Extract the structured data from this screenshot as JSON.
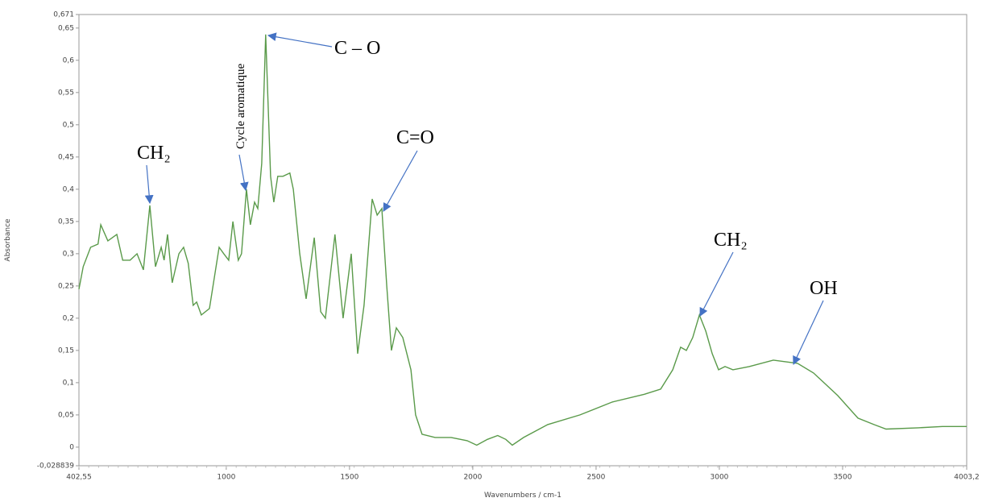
{
  "chart_data": {
    "type": "line",
    "x_label": "Wavenumbers / cm-1",
    "y_label": "Absorbance",
    "xlim": [
      402.55,
      4003.2
    ],
    "ylim": [
      -0.028839,
      0.671
    ],
    "xticks": [
      {
        "value": 402.55,
        "label": "402,55"
      },
      1000,
      1500,
      2000,
      2500,
      3000,
      3500,
      {
        "value": 4003.2,
        "label": "4003,2"
      }
    ],
    "yticks": [
      {
        "value": -0.028839,
        "label": "-0,028839"
      },
      0,
      {
        "value": 0.05,
        "label": "0,05"
      },
      {
        "value": 0.1,
        "label": "0,1"
      },
      {
        "value": 0.15,
        "label": "0,15"
      },
      {
        "value": 0.2,
        "label": "0,2"
      },
      {
        "value": 0.25,
        "label": "0,25"
      },
      {
        "value": 0.3,
        "label": "0,3"
      },
      {
        "value": 0.35,
        "label": "0,35"
      },
      {
        "value": 0.4,
        "label": "0,4"
      },
      {
        "value": 0.45,
        "label": "0,45"
      },
      {
        "value": 0.5,
        "label": "0,5"
      },
      {
        "value": 0.55,
        "label": "0,55"
      },
      {
        "value": 0.6,
        "label": "0,6"
      },
      {
        "value": 0.65,
        "label": "0,65"
      },
      {
        "value": 0.671,
        "label": "0,671"
      }
    ],
    "x": [
      402.55,
      420,
      450,
      480,
      491,
      520,
      556,
      580,
      610,
      638,
      664,
      690,
      713,
      736,
      748,
      762,
      781,
      808,
      827,
      846,
      866,
      880,
      899,
      932,
      971,
      990,
      1010,
      1027,
      1049,
      1062,
      1082,
      1098,
      1115,
      1128,
      1144,
      1160,
      1180,
      1193,
      1209,
      1230,
      1258,
      1272,
      1298,
      1324,
      1357,
      1383,
      1402,
      1441,
      1474,
      1507,
      1533,
      1559,
      1592,
      1612,
      1631,
      1651,
      1670,
      1690,
      1716,
      1749,
      1768,
      1794,
      1847,
      1912,
      1977,
      2016,
      2059,
      2101,
      2134,
      2160,
      2206,
      2304,
      2435,
      2566,
      2696,
      2762,
      2811,
      2843,
      2866,
      2892,
      2919,
      2945,
      2971,
      2997,
      3023,
      3055,
      3121,
      3219,
      3317,
      3382,
      3480,
      3562,
      3627,
      3676,
      3807,
      3905,
      4003.2
    ],
    "series": [
      {
        "name": "Absorbance",
        "color": "#5a9a4a",
        "values": [
          0.245,
          0.28,
          0.31,
          0.315,
          0.345,
          0.32,
          0.33,
          0.29,
          0.29,
          0.3,
          0.275,
          0.375,
          0.28,
          0.31,
          0.29,
          0.33,
          0.255,
          0.3,
          0.31,
          0.285,
          0.22,
          0.225,
          0.205,
          0.215,
          0.31,
          0.3,
          0.29,
          0.35,
          0.29,
          0.3,
          0.4,
          0.345,
          0.38,
          0.37,
          0.44,
          0.64,
          0.42,
          0.38,
          0.42,
          0.42,
          0.425,
          0.4,
          0.3,
          0.23,
          0.325,
          0.21,
          0.2,
          0.33,
          0.2,
          0.3,
          0.145,
          0.22,
          0.385,
          0.36,
          0.37,
          0.25,
          0.15,
          0.185,
          0.17,
          0.12,
          0.05,
          0.02,
          0.015,
          0.015,
          0.01,
          0.003,
          0.012,
          0.018,
          0.012,
          0.003,
          0.015,
          0.035,
          0.05,
          0.07,
          0.082,
          0.09,
          0.12,
          0.155,
          0.15,
          0.17,
          0.205,
          0.18,
          0.145,
          0.12,
          0.125,
          0.12,
          0.125,
          0.135,
          0.13,
          0.115,
          0.08,
          0.045,
          0.035,
          0.028,
          0.03,
          0.032,
          0.032
        ]
      }
    ],
    "annotations": [
      "CH₂",
      "Cycle aromatique",
      "C – O",
      "C=O",
      "CH₂",
      "OH"
    ]
  }
}
